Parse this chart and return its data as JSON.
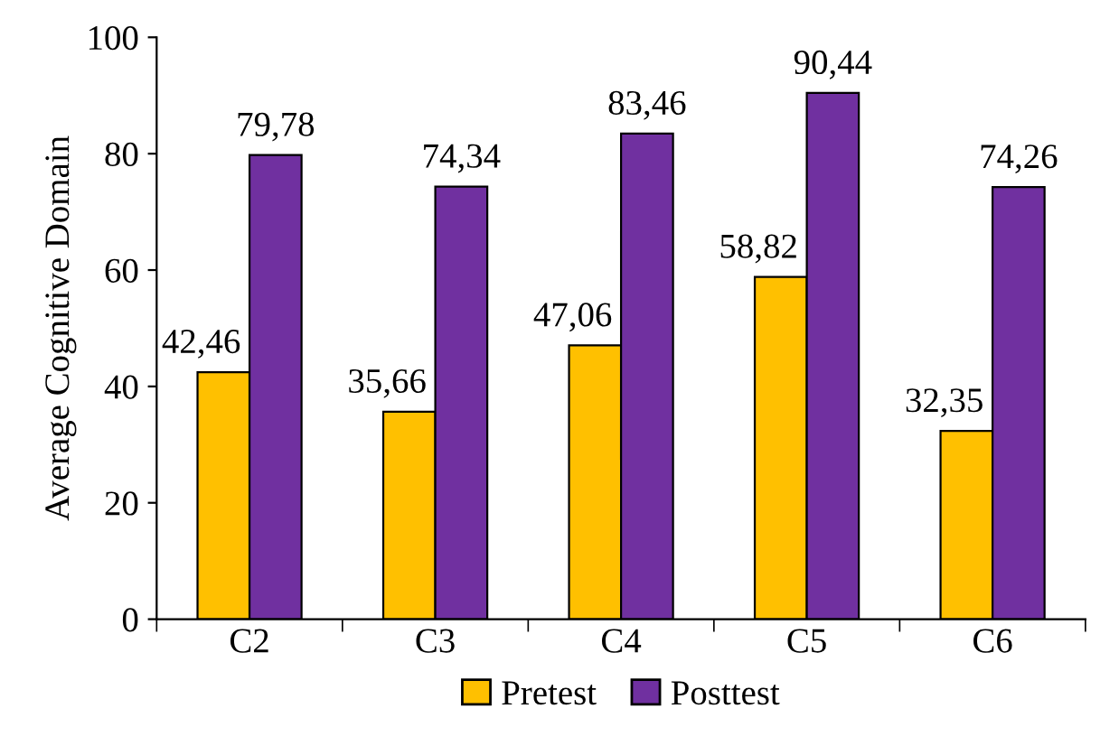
{
  "chart_data": {
    "type": "bar",
    "ylabel": "Average Cognitive Domain",
    "categories": [
      "C2",
      "C3",
      "C4",
      "C5",
      "C6"
    ],
    "series": [
      {
        "name": "Pretest",
        "color": "#ffc000",
        "values": [
          42.46,
          35.66,
          47.06,
          58.82,
          32.35
        ],
        "value_labels": [
          "42,46",
          "35,66",
          "47,06",
          "58,82",
          "32,35"
        ]
      },
      {
        "name": "Posttest",
        "color": "#7030a0",
        "values": [
          79.78,
          74.34,
          83.46,
          90.44,
          74.26
        ],
        "value_labels": [
          "79,78",
          "74,34",
          "83,46",
          "90,44",
          "74,26"
        ]
      }
    ],
    "ylim": [
      0,
      100
    ],
    "yticks": [
      0,
      20,
      40,
      60,
      80,
      100
    ],
    "grid": false,
    "legend": "bottom"
  }
}
